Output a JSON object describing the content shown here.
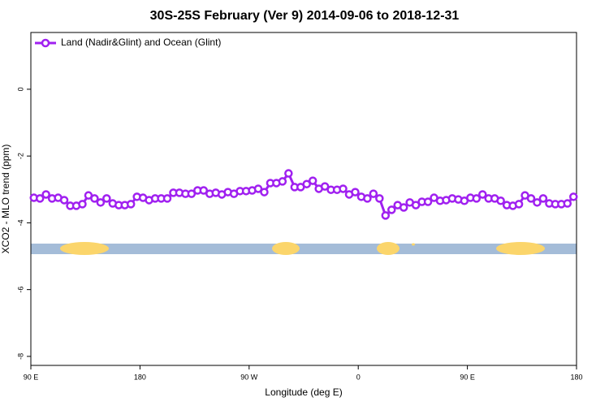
{
  "chart_data": {
    "type": "line",
    "title": "30S-25S February (Ver 9)   2014-09-06 to 2018-12-31",
    "x_label": "Longitude (deg E)",
    "y_label": "XCO2 - MLO trend (ppm)",
    "xlim": [
      90,
      540
    ],
    "ylim": [
      -8.27,
      1.7
    ],
    "xticks": [
      {
        "value": 90,
        "label": "90 E"
      },
      180,
      {
        "value": 270,
        "label": "90 W"
      },
      {
        "value": 360,
        "label": "0"
      },
      {
        "value": 450,
        "label": "90 E"
      },
      {
        "value": 540,
        "label": "180"
      }
    ],
    "yticks": [
      -8,
      -6,
      -4,
      -2,
      0
    ],
    "legend": "top-left",
    "x": [
      92.5,
      97.5,
      102.5,
      107.5,
      112.5,
      117.5,
      122.5,
      127.5,
      132.5,
      137.5,
      142.5,
      147.5,
      152.5,
      157.5,
      162.5,
      167.5,
      172.5,
      177.5,
      182.5,
      187.5,
      192.5,
      197.5,
      202.5,
      207.5,
      212.5,
      217.5,
      222.5,
      227.5,
      232.5,
      237.5,
      242.5,
      247.5,
      252.5,
      257.5,
      262.5,
      267.5,
      272.5,
      277.5,
      282.5,
      287.5,
      292.5,
      297.5,
      302.5,
      307.5,
      312.5,
      317.5,
      322.5,
      327.5,
      332.5,
      337.5,
      342.5,
      347.5,
      352.5,
      357.5,
      362.5,
      367.5,
      372.5,
      377.5,
      382.5,
      387.5,
      392.5,
      397.5,
      402.5,
      407.5,
      412.5,
      417.5,
      422.5,
      427.5,
      432.5,
      437.5,
      442.5,
      447.5,
      452.5,
      457.5,
      462.5,
      467.5,
      472.5,
      477.5,
      482.5,
      487.5,
      492.5,
      497.5,
      502.5,
      507.5,
      512.5,
      517.5,
      522.5,
      527.5,
      532.5,
      537.5
    ],
    "series": [
      {
        "name": "Land (Nadir&Glint) and Ocean (Glint)",
        "color": "#a020f0",
        "values": [
          -3.25,
          -3.27,
          -3.15,
          -3.27,
          -3.25,
          -3.32,
          -3.49,
          -3.49,
          -3.44,
          -3.18,
          -3.27,
          -3.39,
          -3.27,
          -3.42,
          -3.47,
          -3.47,
          -3.44,
          -3.22,
          -3.25,
          -3.32,
          -3.27,
          -3.27,
          -3.27,
          -3.1,
          -3.1,
          -3.13,
          -3.13,
          -3.03,
          -3.03,
          -3.13,
          -3.1,
          -3.15,
          -3.08,
          -3.13,
          -3.05,
          -3.05,
          -3.03,
          -2.98,
          -3.08,
          -2.81,
          -2.81,
          -2.76,
          -2.52,
          -2.93,
          -2.93,
          -2.84,
          -2.74,
          -2.98,
          -2.91,
          -3.01,
          -3.01,
          -2.98,
          -3.15,
          -3.08,
          -3.22,
          -3.27,
          -3.13,
          -3.27,
          -3.78,
          -3.61,
          -3.47,
          -3.54,
          -3.39,
          -3.47,
          -3.37,
          -3.37,
          -3.25,
          -3.34,
          -3.32,
          -3.27,
          -3.3,
          -3.34,
          -3.25,
          -3.27,
          -3.15,
          -3.27,
          -3.27,
          -3.34,
          -3.47,
          -3.49,
          -3.44,
          -3.18,
          -3.27,
          -3.39,
          -3.27,
          -3.42,
          -3.44,
          -3.44,
          -3.42,
          -3.22
        ]
      }
    ]
  }
}
